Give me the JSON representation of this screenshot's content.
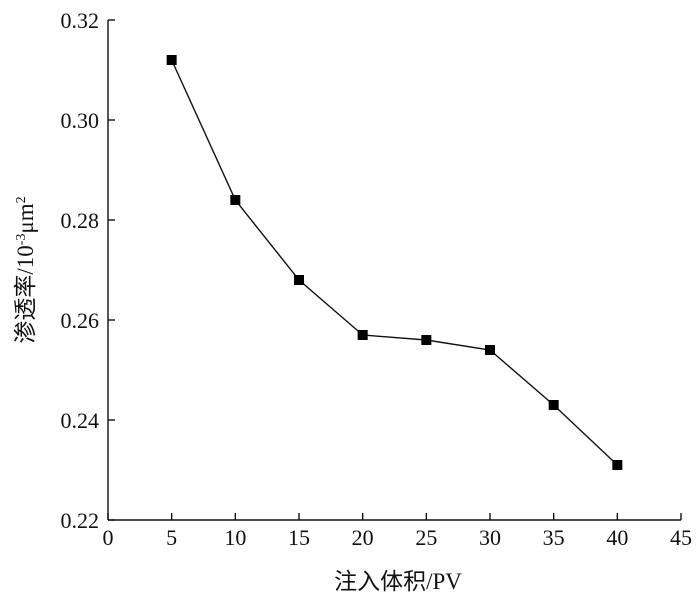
{
  "chart_data": {
    "type": "line",
    "title": "",
    "xlabel": "注入体积/PV",
    "ylabel_main": "渗透率/10",
    "ylabel_exp": "-3",
    "ylabel_unit": "μm",
    "ylabel_unit_exp": "2",
    "xlim": [
      0,
      45
    ],
    "ylim": [
      0.22,
      0.32
    ],
    "x_ticks": [
      0,
      5,
      10,
      15,
      20,
      25,
      30,
      35,
      40,
      45
    ],
    "x_tick_labels": [
      "0",
      "5",
      "10",
      "15",
      "20",
      "25",
      "30",
      "35",
      "40",
      "45"
    ],
    "y_ticks": [
      0.22,
      0.24,
      0.26,
      0.28,
      0.3,
      0.32
    ],
    "y_tick_labels": [
      "0.22",
      "0.24",
      "0.26",
      "0.28",
      "0.30",
      "0.32"
    ],
    "grid": false,
    "marker": "square",
    "series": [
      {
        "x": [
          5,
          10,
          15,
          20,
          25,
          30,
          35,
          40
        ],
        "y": [
          0.312,
          0.284,
          0.268,
          0.257,
          0.256,
          0.254,
          0.243,
          0.231
        ]
      }
    ]
  }
}
